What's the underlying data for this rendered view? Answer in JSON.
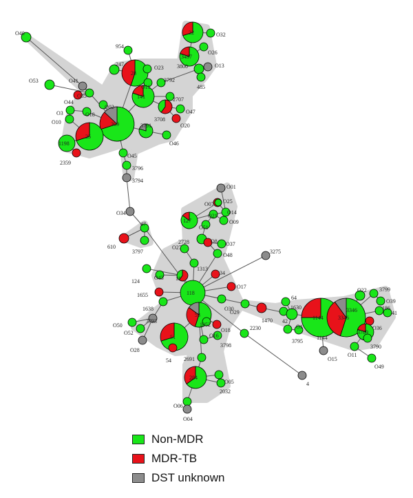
{
  "colors": {
    "green": "#19e619",
    "red": "#e8121a",
    "gray": "#8c8c8c",
    "halo": "#d4d4d4",
    "edge": "#aaaaaa"
  },
  "legend": [
    {
      "label": "Non-MDR",
      "color": "#19e619"
    },
    {
      "label": "MDR-TB",
      "color": "#e8121a"
    },
    {
      "label": "DST unknown",
      "color": "#8c8c8c"
    }
  ],
  "nodes": [
    {
      "id": "n1",
      "label": "O40",
      "color": "g"
    },
    {
      "id": "n2",
      "label": "O53",
      "color": "g"
    },
    {
      "id": "n3",
      "label": "O41",
      "color": "y"
    },
    {
      "id": "n4",
      "label": "O44",
      "color": "r"
    },
    {
      "id": "n5",
      "label": "O35",
      "color": "g"
    },
    {
      "id": "n6",
      "label": "O3",
      "color": "g"
    },
    {
      "id": "n7",
      "label": "O18",
      "color": "g"
    },
    {
      "id": "n8",
      "label": "O10",
      "color": "g"
    },
    {
      "id": "n9",
      "label": "O02",
      "color": "g"
    },
    {
      "id": "n10",
      "label": "954",
      "color": "g"
    },
    {
      "id": "n11",
      "label": "247",
      "color": "g"
    },
    {
      "id": "n12",
      "label": "28",
      "color": "g"
    },
    {
      "id": "n13",
      "label": "O23",
      "color": "g"
    },
    {
      "id": "n14",
      "label": "22",
      "color": "g"
    },
    {
      "id": "n15",
      "label": "O32",
      "color": "g"
    },
    {
      "id": "n16",
      "label": "3497",
      "color": "g"
    },
    {
      "id": "n17",
      "label": "O26",
      "color": "g"
    },
    {
      "id": "n18",
      "label": "3800",
      "color": "g"
    },
    {
      "id": "n19",
      "label": "O13",
      "color": "y"
    },
    {
      "id": "n20",
      "label": "485",
      "color": "g"
    },
    {
      "id": "n21",
      "label": "3792",
      "color": "g"
    },
    {
      "id": "n22",
      "label": "O11",
      "color": "g"
    },
    {
      "id": "n23",
      "label": "141",
      "color": "g"
    },
    {
      "id": "n24",
      "label": "2707",
      "color": "g"
    },
    {
      "id": "n25",
      "label": "O47",
      "color": "g"
    },
    {
      "id": "n26",
      "label": "3708",
      "color": "r"
    },
    {
      "id": "n27",
      "label": "O20",
      "color": "r"
    },
    {
      "id": "n28",
      "label": "309",
      "color": "g"
    },
    {
      "id": "n29",
      "label": "3791",
      "color": "g"
    },
    {
      "id": "n30",
      "label": "O46",
      "color": "g"
    },
    {
      "id": "n31",
      "label": "25",
      "color": "g"
    },
    {
      "id": "n32",
      "label": "1198",
      "color": "g"
    },
    {
      "id": "n33",
      "label": "2359",
      "color": "r"
    },
    {
      "id": "n34",
      "label": "O45",
      "color": "g"
    },
    {
      "id": "n35",
      "label": "3796",
      "color": "g"
    },
    {
      "id": "n36",
      "label": "3794",
      "color": "y"
    },
    {
      "id": "n37",
      "label": "O34",
      "color": "y"
    },
    {
      "id": "n38",
      "label": "47",
      "color": "g"
    },
    {
      "id": "n39",
      "label": "610",
      "color": "r"
    },
    {
      "id": "n40",
      "label": "3797",
      "color": "g"
    },
    {
      "id": "n41",
      "label": "O01",
      "color": "y"
    },
    {
      "id": "n42",
      "label": "O25",
      "color": "r"
    },
    {
      "id": "n43",
      "label": "O07",
      "color": "g"
    },
    {
      "id": "n44",
      "label": "O14",
      "color": "g"
    },
    {
      "id": "n45",
      "label": "127",
      "color": "g"
    },
    {
      "id": "n46",
      "label": "O21",
      "color": "g"
    },
    {
      "id": "n47",
      "label": "O09",
      "color": "g"
    },
    {
      "id": "n48",
      "label": "O51",
      "color": "g"
    },
    {
      "id": "n49",
      "label": "2728",
      "color": "g"
    },
    {
      "id": "n50",
      "label": "O8",
      "color": "r"
    },
    {
      "id": "n51",
      "label": "O37",
      "color": "g"
    },
    {
      "id": "n52",
      "label": "O27",
      "color": "g"
    },
    {
      "id": "n53",
      "label": "O48",
      "color": "g"
    },
    {
      "id": "n54",
      "label": "3275",
      "color": "y"
    },
    {
      "id": "n55",
      "label": "1313",
      "color": "g"
    },
    {
      "id": "n56",
      "label": "34",
      "color": "r"
    },
    {
      "id": "n57",
      "label": "124",
      "color": "g"
    },
    {
      "id": "n58",
      "label": "O43",
      "color": "g"
    },
    {
      "id": "n59",
      "label": "11",
      "color": "r"
    },
    {
      "id": "n60",
      "label": "1655",
      "color": "r"
    },
    {
      "id": "n61",
      "label": "118",
      "color": "g"
    },
    {
      "id": "n62",
      "label": "O17",
      "color": "r"
    },
    {
      "id": "n63",
      "label": "O30",
      "color": "g"
    },
    {
      "id": "n64",
      "label": "1638",
      "color": "g"
    },
    {
      "id": "n65",
      "label": "O50",
      "color": "g"
    },
    {
      "id": "n66",
      "label": "O52",
      "color": "g"
    },
    {
      "id": "n67",
      "label": "3793",
      "color": "y"
    },
    {
      "id": "n68",
      "label": "O28",
      "color": "y"
    },
    {
      "id": "n69",
      "label": "53",
      "color": "g"
    },
    {
      "id": "n70",
      "label": "1052",
      "color": "g"
    },
    {
      "id": "n71",
      "label": "O18",
      "color": "r"
    },
    {
      "id": "n72",
      "label": "O16",
      "color": "g"
    },
    {
      "id": "n73",
      "label": "3798",
      "color": "g"
    },
    {
      "id": "n74",
      "label": "51",
      "color": "g"
    },
    {
      "id": "n75",
      "label": "54",
      "color": "r"
    },
    {
      "id": "n76",
      "label": "2230",
      "color": "g"
    },
    {
      "id": "n77",
      "label": "O29",
      "color": "g"
    },
    {
      "id": "n78",
      "label": "1470",
      "color": "r"
    },
    {
      "id": "n79",
      "label": "64",
      "color": "g"
    },
    {
      "id": "n80",
      "label": "1630",
      "color": "g"
    },
    {
      "id": "n81",
      "label": "42",
      "color": "g"
    },
    {
      "id": "n82",
      "label": "O1",
      "color": "g"
    },
    {
      "id": "n83",
      "label": "3795",
      "color": "g"
    },
    {
      "id": "n84",
      "label": "1144",
      "color": "g"
    },
    {
      "id": "n85",
      "label": "O15",
      "color": "y"
    },
    {
      "id": "n86",
      "label": "4",
      "color": "y"
    },
    {
      "id": "n87",
      "label": "3346",
      "color": "g"
    },
    {
      "id": "n88",
      "label": "O22",
      "color": "g"
    },
    {
      "id": "n89",
      "label": "3799",
      "color": "g"
    },
    {
      "id": "n90",
      "label": "O39",
      "color": "g"
    },
    {
      "id": "n91",
      "label": "186",
      "color": "g"
    },
    {
      "id": "n92",
      "label": "41",
      "color": "g"
    },
    {
      "id": "n93",
      "label": "O36",
      "color": "r"
    },
    {
      "id": "n94",
      "label": "3789",
      "color": "g"
    },
    {
      "id": "n95",
      "label": "3790",
      "color": "g"
    },
    {
      "id": "n96",
      "label": "O11",
      "color": "g"
    },
    {
      "id": "n97",
      "label": "O49",
      "color": "g"
    },
    {
      "id": "n98",
      "label": "2691",
      "color": "g"
    },
    {
      "id": "n99",
      "label": "284",
      "color": "g"
    },
    {
      "id": "n100",
      "label": "O05",
      "color": "g"
    },
    {
      "id": "n101",
      "label": "2032",
      "color": "g"
    },
    {
      "id": "n102",
      "label": "O06",
      "color": "g"
    },
    {
      "id": "n103",
      "label": "O04",
      "color": "y"
    },
    {
      "id": "n104",
      "label": "1144",
      "color": "g"
    },
    {
      "id": "n105",
      "label": "3346",
      "color": "g"
    }
  ]
}
